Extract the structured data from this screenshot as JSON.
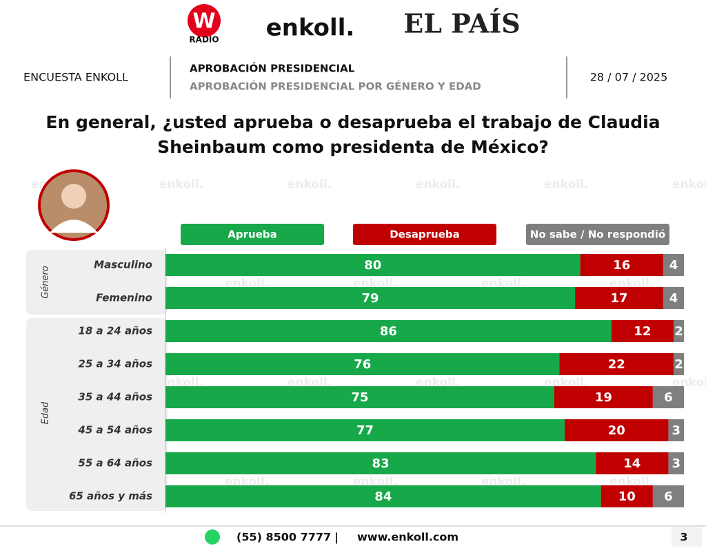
{
  "logos": [
    "W",
    "RADIO",
    "enkoll.",
    "EL PAÍS"
  ],
  "header": {
    "left": "ENCUESTA ENKOLL",
    "title": "APROBACIÓN PRESIDENCIAL",
    "subtitle": "APROBACIÓN PRESIDENCIAL POR GÉNERO Y EDAD",
    "date": "28 / 07 / 2025"
  },
  "watermark": "enkoll.",
  "chart_data": {
    "type": "stacked-bar-horizontal",
    "title": "En general, ¿usted aprueba o desaprueba el trabajo de Claudia Sheinbaum como presidenta de México?",
    "groups": [
      {
        "label": "Género",
        "categories": [
          "Masculino",
          "Femenino"
        ]
      },
      {
        "label": "Edad",
        "categories": [
          "18 a 24 años",
          "25 a 34 años",
          "35 a 44 años",
          "45 a 54 años",
          "55 a 64 años",
          "65 años y más"
        ]
      }
    ],
    "xlim": [
      0,
      100
    ],
    "series": [
      {
        "name": "Aprueba",
        "color": "#17a84a",
        "values": [
          80,
          79,
          86,
          76,
          75,
          77,
          83,
          84
        ]
      },
      {
        "name": "Desaprueba",
        "color": "#c00000",
        "values": [
          16,
          17,
          12,
          22,
          19,
          20,
          14,
          10
        ]
      },
      {
        "name": "No sabe / No respondió",
        "color": "#7f7f7f",
        "values": [
          4,
          4,
          2,
          2,
          6,
          3,
          3,
          6
        ]
      }
    ]
  },
  "footer": {
    "phone": "(55) 8500 7777",
    "separator": "|",
    "web": "www.enkoll.com",
    "page": "3"
  }
}
